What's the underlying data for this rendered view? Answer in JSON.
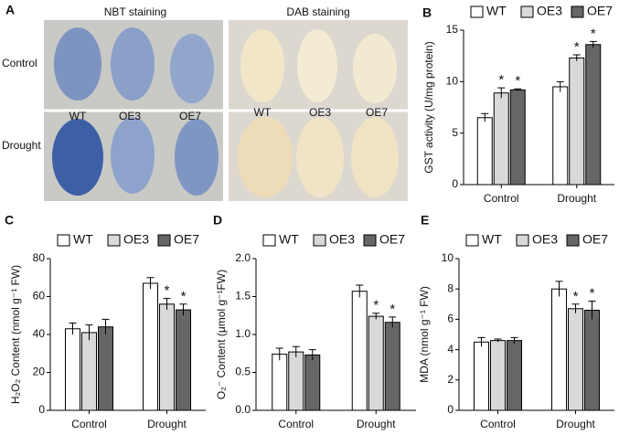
{
  "image_panel": {
    "label": "A",
    "titles": [
      "NBT staining",
      "DAB staining"
    ],
    "rows": [
      "Control",
      "Drought"
    ],
    "genotypes": [
      "WT",
      "OE3",
      "OE7"
    ]
  },
  "chart_data": [
    {
      "type": "bar",
      "panel": "B",
      "y_label": "GST activity (U/mg protein)",
      "categories": [
        "Control",
        "Drought"
      ],
      "ylim": [
        0,
        15
      ],
      "yticks": [
        0,
        5,
        10,
        15
      ],
      "series": [
        {
          "name": "WT",
          "color": "#ffffff",
          "values": [
            6.5,
            9.5
          ],
          "errors": [
            0.4,
            0.5
          ],
          "significance": [
            null,
            null
          ]
        },
        {
          "name": "OE3",
          "color": "#d9d9d9",
          "values": [
            8.9,
            12.3
          ],
          "errors": [
            0.5,
            0.3
          ],
          "significance": [
            "*",
            "*"
          ]
        },
        {
          "name": "OE7",
          "color": "#666666",
          "values": [
            9.2,
            13.6
          ],
          "errors": [
            0.1,
            0.3
          ],
          "significance": [
            "*",
            "*"
          ]
        }
      ]
    },
    {
      "type": "bar",
      "panel": "C",
      "y_label": "H₂O₂ Content (nmol g⁻¹ FW)",
      "categories": [
        "Control",
        "Drought"
      ],
      "ylim": [
        0,
        80
      ],
      "yticks": [
        0,
        20,
        40,
        60,
        80
      ],
      "series": [
        {
          "name": "WT",
          "color": "#ffffff",
          "values": [
            43,
            67
          ],
          "errors": [
            3,
            3
          ],
          "significance": [
            null,
            null
          ]
        },
        {
          "name": "OE3",
          "color": "#d9d9d9",
          "values": [
            41,
            56
          ],
          "errors": [
            4,
            3
          ],
          "significance": [
            null,
            "*"
          ]
        },
        {
          "name": "OE7",
          "color": "#666666",
          "values": [
            44,
            53
          ],
          "errors": [
            4,
            3
          ],
          "significance": [
            null,
            "*"
          ]
        }
      ]
    },
    {
      "type": "bar",
      "panel": "D",
      "y_label": "O₂⁻ Content (μmol g⁻¹FW)",
      "categories": [
        "Control",
        "Drought"
      ],
      "ylim": [
        0,
        2
      ],
      "yticks": [
        {
          "value": 0,
          "label": "0.0"
        },
        {
          "value": 0.5,
          "label": "0.5"
        },
        {
          "value": 1,
          "label": "1.0"
        },
        {
          "value": 1.5,
          "label": "1.5"
        },
        {
          "value": 2,
          "label": "2.0"
        }
      ],
      "series": [
        {
          "name": "WT",
          "color": "#ffffff",
          "values": [
            0.74,
            1.57
          ],
          "errors": [
            0.08,
            0.08
          ],
          "significance": [
            null,
            null
          ]
        },
        {
          "name": "OE3",
          "color": "#d9d9d9",
          "values": [
            0.77,
            1.24
          ],
          "errors": [
            0.07,
            0.04
          ],
          "significance": [
            null,
            "*"
          ]
        },
        {
          "name": "OE7",
          "color": "#666666",
          "values": [
            0.73,
            1.16
          ],
          "errors": [
            0.07,
            0.07
          ],
          "significance": [
            null,
            "*"
          ]
        }
      ]
    },
    {
      "type": "bar",
      "panel": "E",
      "y_label": "MDA (nmol g⁻¹ FW)",
      "categories": [
        "Control",
        "Drought"
      ],
      "ylim": [
        0,
        10
      ],
      "yticks": [
        0,
        2,
        4,
        6,
        8,
        10
      ],
      "series": [
        {
          "name": "WT",
          "color": "#ffffff",
          "values": [
            4.5,
            8.0
          ],
          "errors": [
            0.3,
            0.5
          ],
          "significance": [
            null,
            null
          ]
        },
        {
          "name": "OE3",
          "color": "#d9d9d9",
          "values": [
            4.6,
            6.7
          ],
          "errors": [
            0.1,
            0.3
          ],
          "significance": [
            null,
            "*"
          ]
        },
        {
          "name": "OE7",
          "color": "#666666",
          "values": [
            4.6,
            6.6
          ],
          "errors": [
            0.2,
            0.6
          ],
          "significance": [
            null,
            "*"
          ]
        }
      ]
    }
  ]
}
